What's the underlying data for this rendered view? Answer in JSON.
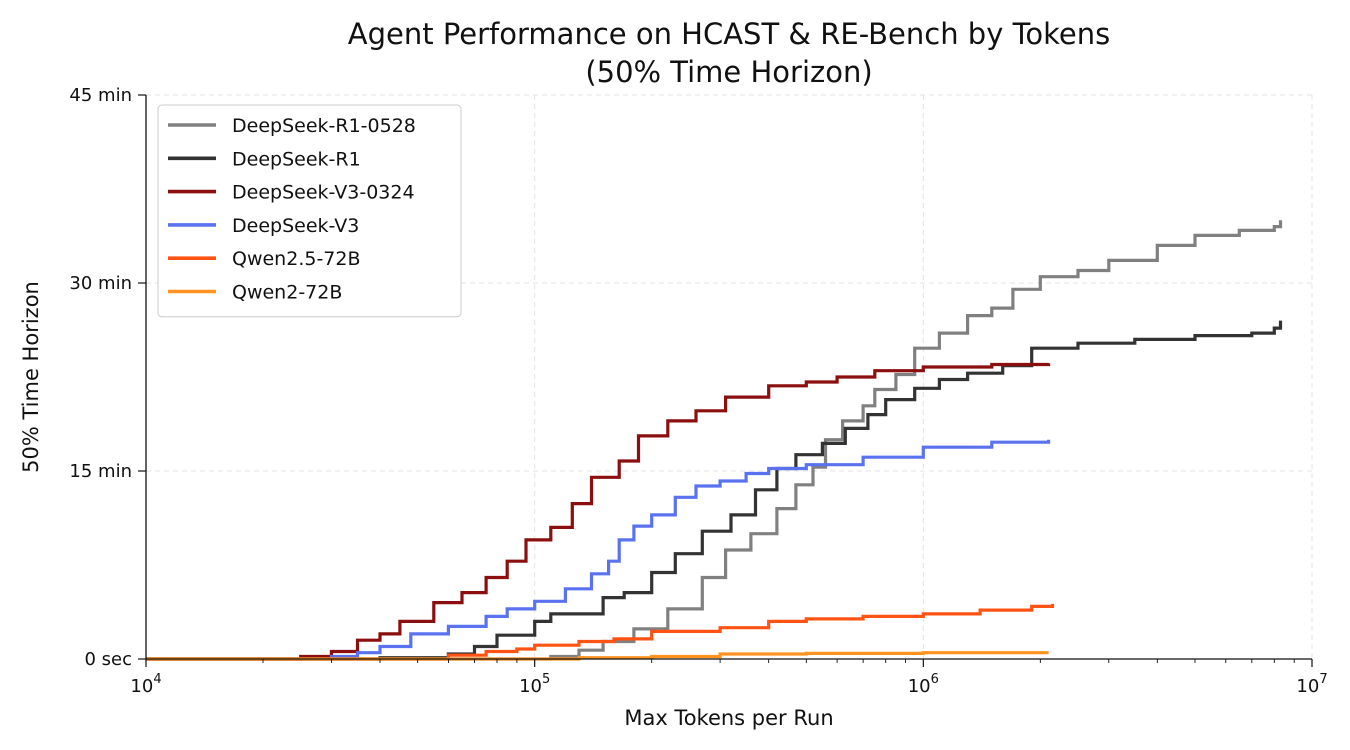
{
  "chart_data": {
    "type": "line",
    "title": "Agent Performance on HCAST & RE-Bench by Tokens",
    "subtitle": "(50% Time Horizon)",
    "xlabel": "Max Tokens per Run",
    "ylabel": "50% Time Horizon",
    "x_scale": "log",
    "xlim": [
      10000,
      10000000
    ],
    "ylim_minutes": [
      0,
      45
    ],
    "x_ticks": [
      {
        "value": 10000,
        "base": "10",
        "exp": "4"
      },
      {
        "value": 100000,
        "base": "10",
        "exp": "5"
      },
      {
        "value": 1000000,
        "base": "10",
        "exp": "6"
      },
      {
        "value": 10000000,
        "base": "10",
        "exp": "7"
      }
    ],
    "y_ticks": [
      {
        "value": 0,
        "label": "0 sec"
      },
      {
        "value": 15,
        "label": "15 min"
      },
      {
        "value": 30,
        "label": "30 min"
      },
      {
        "value": 45,
        "label": "45 min"
      }
    ],
    "grid": true,
    "legend_position": "top-left",
    "series": [
      {
        "name": "DeepSeek-R1-0528",
        "color": "#808080",
        "points": [
          [
            10000,
            0
          ],
          [
            100000,
            0
          ],
          [
            110000,
            0.2
          ],
          [
            130000,
            0.7
          ],
          [
            150000,
            1.4
          ],
          [
            180000,
            2.4
          ],
          [
            220000,
            4.0
          ],
          [
            270000,
            6.5
          ],
          [
            310000,
            8.7
          ],
          [
            360000,
            10.0
          ],
          [
            420000,
            12.0
          ],
          [
            470000,
            13.9
          ],
          [
            520000,
            15.3
          ],
          [
            560000,
            17.5
          ],
          [
            620000,
            19.0
          ],
          [
            700000,
            20.2
          ],
          [
            750000,
            21.5
          ],
          [
            850000,
            22.7
          ],
          [
            950000,
            24.8
          ],
          [
            1100000,
            26.0
          ],
          [
            1300000,
            27.4
          ],
          [
            1500000,
            28.0
          ],
          [
            1700000,
            29.5
          ],
          [
            2000000,
            30.5
          ],
          [
            2500000,
            31.0
          ],
          [
            3000000,
            31.8
          ],
          [
            4000000,
            33.0
          ],
          [
            5000000,
            33.8
          ],
          [
            6500000,
            34.2
          ],
          [
            8000000,
            34.5
          ],
          [
            8300000,
            35.0
          ]
        ]
      },
      {
        "name": "DeepSeek-R1",
        "color": "#333333",
        "points": [
          [
            10000,
            0
          ],
          [
            20000,
            0
          ],
          [
            40000,
            0.1
          ],
          [
            60000,
            0.4
          ],
          [
            70000,
            1.0
          ],
          [
            80000,
            1.9
          ],
          [
            100000,
            3.0
          ],
          [
            110000,
            3.6
          ],
          [
            150000,
            4.9
          ],
          [
            170000,
            5.3
          ],
          [
            200000,
            6.9
          ],
          [
            230000,
            8.4
          ],
          [
            270000,
            10.2
          ],
          [
            320000,
            11.5
          ],
          [
            370000,
            13.5
          ],
          [
            420000,
            15.2
          ],
          [
            470000,
            16.3
          ],
          [
            550000,
            17.2
          ],
          [
            630000,
            18.4
          ],
          [
            720000,
            19.5
          ],
          [
            800000,
            20.7
          ],
          [
            950000,
            21.6
          ],
          [
            1100000,
            22.3
          ],
          [
            1300000,
            22.8
          ],
          [
            1600000,
            23.4
          ],
          [
            1900000,
            24.8
          ],
          [
            2500000,
            25.2
          ],
          [
            3500000,
            25.5
          ],
          [
            5000000,
            25.8
          ],
          [
            7000000,
            26.0
          ],
          [
            8000000,
            26.4
          ],
          [
            8300000,
            27.0
          ]
        ]
      },
      {
        "name": "DeepSeek-V3-0324",
        "color": "#8b0f0f",
        "points": [
          [
            10000,
            0
          ],
          [
            20000,
            0
          ],
          [
            25000,
            0.2
          ],
          [
            30000,
            0.6
          ],
          [
            35000,
            1.5
          ],
          [
            40000,
            2.0
          ],
          [
            45000,
            3.0
          ],
          [
            55000,
            4.5
          ],
          [
            65000,
            5.3
          ],
          [
            75000,
            6.5
          ],
          [
            85000,
            7.8
          ],
          [
            95000,
            9.5
          ],
          [
            110000,
            10.5
          ],
          [
            125000,
            12.4
          ],
          [
            140000,
            14.5
          ],
          [
            165000,
            15.8
          ],
          [
            185000,
            17.8
          ],
          [
            220000,
            19.0
          ],
          [
            260000,
            19.8
          ],
          [
            310000,
            20.9
          ],
          [
            400000,
            21.8
          ],
          [
            500000,
            22.1
          ],
          [
            600000,
            22.5
          ],
          [
            750000,
            23.0
          ],
          [
            1000000,
            23.3
          ],
          [
            1500000,
            23.5
          ],
          [
            2100000,
            23.6
          ]
        ]
      },
      {
        "name": "DeepSeek-V3",
        "color": "#5b72f0",
        "points": [
          [
            10000,
            0
          ],
          [
            25000,
            0
          ],
          [
            30000,
            0.2
          ],
          [
            35000,
            0.5
          ],
          [
            40000,
            1.0
          ],
          [
            48000,
            2.0
          ],
          [
            60000,
            2.6
          ],
          [
            75000,
            3.4
          ],
          [
            85000,
            4.0
          ],
          [
            100000,
            4.6
          ],
          [
            120000,
            5.6
          ],
          [
            140000,
            6.8
          ],
          [
            155000,
            7.8
          ],
          [
            165000,
            9.5
          ],
          [
            180000,
            10.6
          ],
          [
            200000,
            11.5
          ],
          [
            230000,
            12.9
          ],
          [
            260000,
            13.8
          ],
          [
            300000,
            14.2
          ],
          [
            350000,
            14.8
          ],
          [
            400000,
            15.2
          ],
          [
            500000,
            15.5
          ],
          [
            700000,
            16.1
          ],
          [
            1000000,
            16.9
          ],
          [
            1500000,
            17.3
          ],
          [
            2100000,
            17.5
          ]
        ]
      },
      {
        "name": "Qwen2.5-72B",
        "color": "#ff5316",
        "points": [
          [
            10000,
            0
          ],
          [
            50000,
            0
          ],
          [
            60000,
            0.3
          ],
          [
            75000,
            0.6
          ],
          [
            90000,
            0.8
          ],
          [
            100000,
            1.1
          ],
          [
            130000,
            1.4
          ],
          [
            160000,
            1.6
          ],
          [
            200000,
            2.2
          ],
          [
            300000,
            2.5
          ],
          [
            400000,
            3.0
          ],
          [
            500000,
            3.2
          ],
          [
            700000,
            3.4
          ],
          [
            1000000,
            3.6
          ],
          [
            1400000,
            3.9
          ],
          [
            1900000,
            4.2
          ],
          [
            2150000,
            4.4
          ]
        ]
      },
      {
        "name": "Qwen2-72B",
        "color": "#ff9320",
        "points": [
          [
            10000,
            0
          ],
          [
            100000,
            0
          ],
          [
            130000,
            0.1
          ],
          [
            200000,
            0.2
          ],
          [
            300000,
            0.4
          ],
          [
            500000,
            0.45
          ],
          [
            800000,
            0.45
          ],
          [
            1000000,
            0.5
          ],
          [
            2100000,
            0.5
          ]
        ]
      }
    ]
  }
}
